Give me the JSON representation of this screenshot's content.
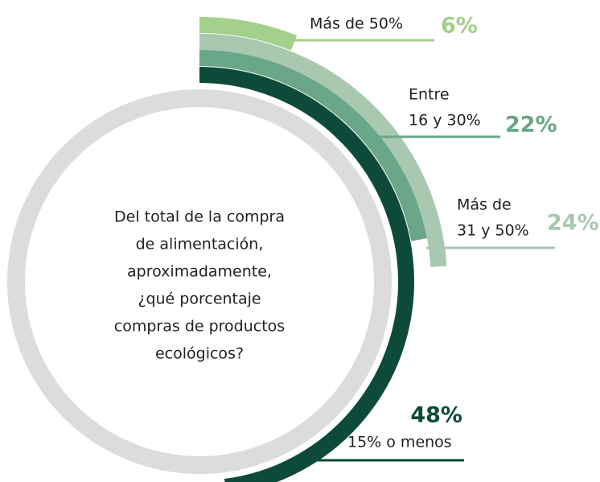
{
  "chart_data": {
    "type": "radial-bar",
    "title": [
      "Del total de la compra",
      "de alimentación,",
      "aproximadamente,",
      "¿qué porcentaje",
      "compras de productos",
      "ecológicos?"
    ],
    "categories": [
      [
        "Más de 50%"
      ],
      [
        "Más de",
        "31 y 50%"
      ],
      [
        "Entre",
        "16 y 30%"
      ],
      [
        "15% o menos"
      ]
    ],
    "series": [
      {
        "name": "Más de 50%",
        "values": [
          6,
          24,
          22,
          48
        ],
        "value_labels": [
          "6%",
          "24%",
          "22%",
          "48%"
        ],
        "colors": [
          "#a3d08a",
          "#a8c8b0",
          "#6aa688",
          "#0d4a3a"
        ]
      }
    ],
    "ring_color": "#dcdcdc"
  }
}
